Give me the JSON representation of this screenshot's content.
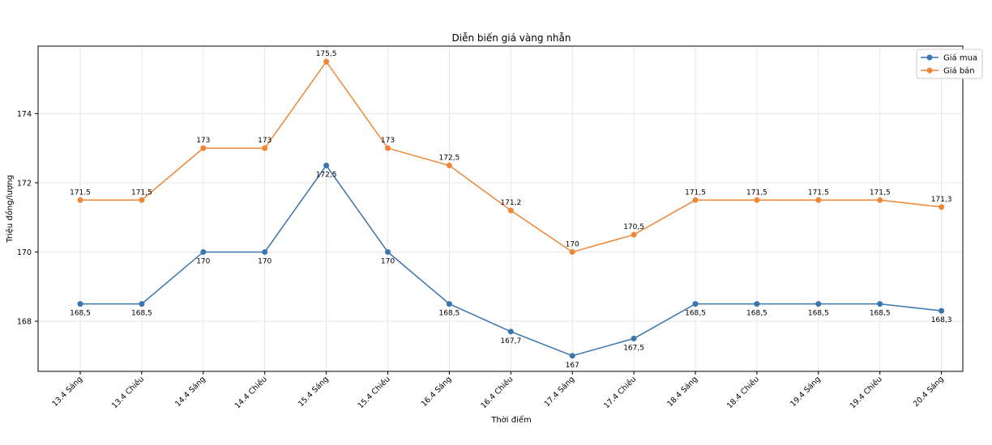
{
  "chart_data": {
    "type": "line",
    "title": "Diễn biến giá vàng nhẫn",
    "xlabel": "Thời điểm",
    "ylabel": "Triệu đồng/lượng",
    "categories": [
      "13.4 Sáng",
      "13.4 Chiều",
      "14.4 Sáng",
      "14.4 Chiều",
      "15.4 Sáng",
      "15.4 Chiều",
      "16.4 Sáng",
      "16.4 Chiều",
      "17.4 Sáng",
      "17.4 Chiều",
      "18.4 Sáng",
      "18.4 Chiều",
      "19.4 Sáng",
      "19.4 Chiều",
      "20.4 Sáng"
    ],
    "ylim": [
      166.55,
      175.95
    ],
    "yticks": [
      168,
      170,
      172,
      174
    ],
    "grid": true,
    "legend_position": "top-right",
    "series": [
      {
        "name": "Giá mua",
        "color": "#3b75af",
        "label_position": "below",
        "values": [
          168.5,
          168.5,
          170,
          170,
          172.5,
          170,
          168.5,
          167.7,
          167,
          167.5,
          168.5,
          168.5,
          168.5,
          168.5,
          168.3
        ],
        "labels": [
          "168,5",
          "168,5",
          "170",
          "170",
          "172,5",
          "170",
          "168,5",
          "167,7",
          "167",
          "167,5",
          "168,5",
          "168,5",
          "168,5",
          "168,5",
          "168,3"
        ]
      },
      {
        "name": "Giá bán",
        "color": "#ef8636",
        "label_position": "above",
        "values": [
          171.5,
          171.5,
          173,
          173,
          175.5,
          173,
          172.5,
          171.2,
          170,
          170.5,
          171.5,
          171.5,
          171.5,
          171.5,
          171.3
        ],
        "labels": [
          "171.5",
          "171,5",
          "173",
          "173",
          "175,5",
          "173",
          "172,5",
          "171,2",
          "170",
          "170,5",
          "171,5",
          "171,5",
          "171.5",
          "171,5",
          "171,3"
        ]
      }
    ]
  }
}
